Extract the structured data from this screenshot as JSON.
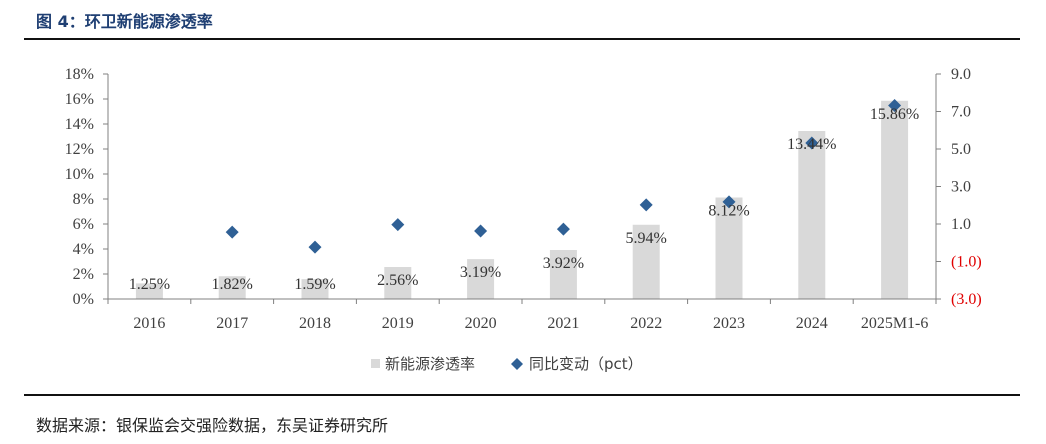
{
  "figure": {
    "title": "图 4：环卫新能源渗透率",
    "source": "数据来源：银保监会交强险数据，东吴证券研究所"
  },
  "colors": {
    "bar": "#d9d9d9",
    "marker": "#2f6095",
    "axis": "#808080",
    "negative": "#e00000",
    "title": "#1f3f73"
  },
  "chart_data": {
    "type": "bar",
    "categories": [
      "2016",
      "2017",
      "2018",
      "2019",
      "2020",
      "2021",
      "2022",
      "2023",
      "2024",
      "2025M1-6"
    ],
    "series": [
      {
        "name": "新能源渗透率",
        "type": "bar",
        "axis": "left",
        "values": [
          1.25,
          1.82,
          1.59,
          2.56,
          3.19,
          3.92,
          5.94,
          8.12,
          13.44,
          15.86
        ],
        "labels": [
          "1.25%",
          "1.82%",
          "1.59%",
          "2.56%",
          "3.19%",
          "3.92%",
          "5.94%",
          "8.12%",
          "13.44%",
          "15.86%"
        ]
      },
      {
        "name": "同比变动（pct）",
        "type": "scatter",
        "marker": "diamond",
        "axis": "right",
        "values": [
          null,
          0.57,
          -0.23,
          0.97,
          0.63,
          0.73,
          2.02,
          2.18,
          5.32,
          7.32
        ]
      }
    ],
    "y_left": {
      "min": 0,
      "max": 18,
      "ticks": [
        "0%",
        "2%",
        "4%",
        "6%",
        "8%",
        "10%",
        "12%",
        "14%",
        "16%",
        "18%"
      ]
    },
    "y_right": {
      "min": -3,
      "max": 9,
      "ticks": [
        "(3.0)",
        "(1.0)",
        "1.0",
        "3.0",
        "5.0",
        "7.0",
        "9.0"
      ],
      "tick_values": [
        -3,
        -1,
        1,
        3,
        5,
        7,
        9
      ]
    },
    "legend": {
      "position": "bottom",
      "items": [
        "新能源渗透率",
        "同比变动（pct）"
      ]
    },
    "grid": false
  }
}
